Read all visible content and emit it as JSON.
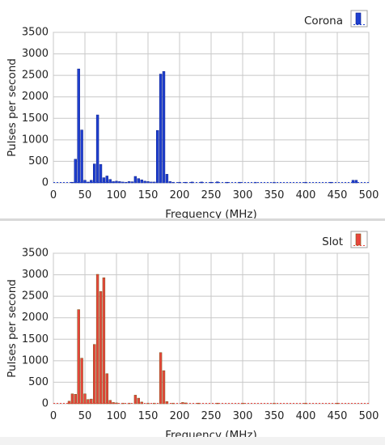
{
  "chart_data": [
    {
      "type": "bar",
      "legend": "Corona",
      "xlabel": "Frequency (MHz)",
      "ylabel": "Pulses per second",
      "xlim": [
        0,
        500
      ],
      "ylim": [
        0,
        3500
      ],
      "xticks": [
        "0",
        "50",
        "100",
        "150",
        "200",
        "250",
        "300",
        "350",
        "400",
        "450",
        "500"
      ],
      "yticks": [
        "0",
        "500",
        "1000",
        "1500",
        "2000",
        "2500",
        "3000",
        "3500"
      ],
      "legend_position": "top-right",
      "grid": true,
      "color": "#1f3fd0",
      "edge_color": "#0a1f8a",
      "bins": [
        {
          "x": 30,
          "y": 15
        },
        {
          "x": 35,
          "y": 550
        },
        {
          "x": 40,
          "y": 2650
        },
        {
          "x": 45,
          "y": 1230
        },
        {
          "x": 50,
          "y": 60
        },
        {
          "x": 55,
          "y": 20
        },
        {
          "x": 60,
          "y": 60
        },
        {
          "x": 65,
          "y": 440
        },
        {
          "x": 70,
          "y": 1580
        },
        {
          "x": 75,
          "y": 430
        },
        {
          "x": 80,
          "y": 120
        },
        {
          "x": 85,
          "y": 160
        },
        {
          "x": 90,
          "y": 80
        },
        {
          "x": 95,
          "y": 30
        },
        {
          "x": 100,
          "y": 40
        },
        {
          "x": 105,
          "y": 30
        },
        {
          "x": 110,
          "y": 20
        },
        {
          "x": 115,
          "y": 15
        },
        {
          "x": 120,
          "y": 30
        },
        {
          "x": 125,
          "y": 25
        },
        {
          "x": 130,
          "y": 150
        },
        {
          "x": 135,
          "y": 100
        },
        {
          "x": 140,
          "y": 70
        },
        {
          "x": 145,
          "y": 40
        },
        {
          "x": 150,
          "y": 30
        },
        {
          "x": 155,
          "y": 20
        },
        {
          "x": 160,
          "y": 20
        },
        {
          "x": 165,
          "y": 1220
        },
        {
          "x": 170,
          "y": 2530
        },
        {
          "x": 175,
          "y": 2590
        },
        {
          "x": 180,
          "y": 200
        },
        {
          "x": 185,
          "y": 30
        },
        {
          "x": 190,
          "y": 15
        },
        {
          "x": 200,
          "y": 15
        },
        {
          "x": 210,
          "y": 15
        },
        {
          "x": 220,
          "y": 20
        },
        {
          "x": 235,
          "y": 20
        },
        {
          "x": 250,
          "y": 15
        },
        {
          "x": 260,
          "y": 25
        },
        {
          "x": 275,
          "y": 15
        },
        {
          "x": 295,
          "y": 15
        },
        {
          "x": 320,
          "y": 15
        },
        {
          "x": 350,
          "y": 15
        },
        {
          "x": 400,
          "y": 15
        },
        {
          "x": 440,
          "y": 15
        },
        {
          "x": 475,
          "y": 60
        },
        {
          "x": 480,
          "y": 60
        }
      ]
    },
    {
      "type": "bar",
      "legend": "Slot",
      "xlabel": "Frequency (MHz)",
      "ylabel": "Pulses per second",
      "xlim": [
        0,
        500
      ],
      "ylim": [
        0,
        3500
      ],
      "xticks": [
        "0",
        "50",
        "100",
        "150",
        "200",
        "250",
        "300",
        "350",
        "400",
        "450",
        "500"
      ],
      "yticks": [
        "0",
        "500",
        "1000",
        "1500",
        "2000",
        "2500",
        "3000",
        "3500"
      ],
      "legend_position": "top-right",
      "grid": true,
      "color": "#e8453c",
      "edge_color": "#7a5a1a",
      "bins": [
        {
          "x": 25,
          "y": 60
        },
        {
          "x": 30,
          "y": 230
        },
        {
          "x": 35,
          "y": 220
        },
        {
          "x": 40,
          "y": 2190
        },
        {
          "x": 45,
          "y": 1060
        },
        {
          "x": 50,
          "y": 230
        },
        {
          "x": 55,
          "y": 100
        },
        {
          "x": 60,
          "y": 110
        },
        {
          "x": 65,
          "y": 1380
        },
        {
          "x": 70,
          "y": 3010
        },
        {
          "x": 75,
          "y": 2610
        },
        {
          "x": 80,
          "y": 2930
        },
        {
          "x": 85,
          "y": 700
        },
        {
          "x": 90,
          "y": 80
        },
        {
          "x": 95,
          "y": 30
        },
        {
          "x": 100,
          "y": 20
        },
        {
          "x": 110,
          "y": 15
        },
        {
          "x": 120,
          "y": 15
        },
        {
          "x": 130,
          "y": 200
        },
        {
          "x": 135,
          "y": 130
        },
        {
          "x": 140,
          "y": 40
        },
        {
          "x": 150,
          "y": 15
        },
        {
          "x": 160,
          "y": 15
        },
        {
          "x": 170,
          "y": 1190
        },
        {
          "x": 175,
          "y": 770
        },
        {
          "x": 180,
          "y": 50
        },
        {
          "x": 190,
          "y": 15
        },
        {
          "x": 205,
          "y": 30
        },
        {
          "x": 210,
          "y": 20
        },
        {
          "x": 230,
          "y": 15
        },
        {
          "x": 260,
          "y": 10
        },
        {
          "x": 300,
          "y": 10
        },
        {
          "x": 350,
          "y": 10
        },
        {
          "x": 400,
          "y": 10
        },
        {
          "x": 450,
          "y": 10
        }
      ]
    }
  ]
}
